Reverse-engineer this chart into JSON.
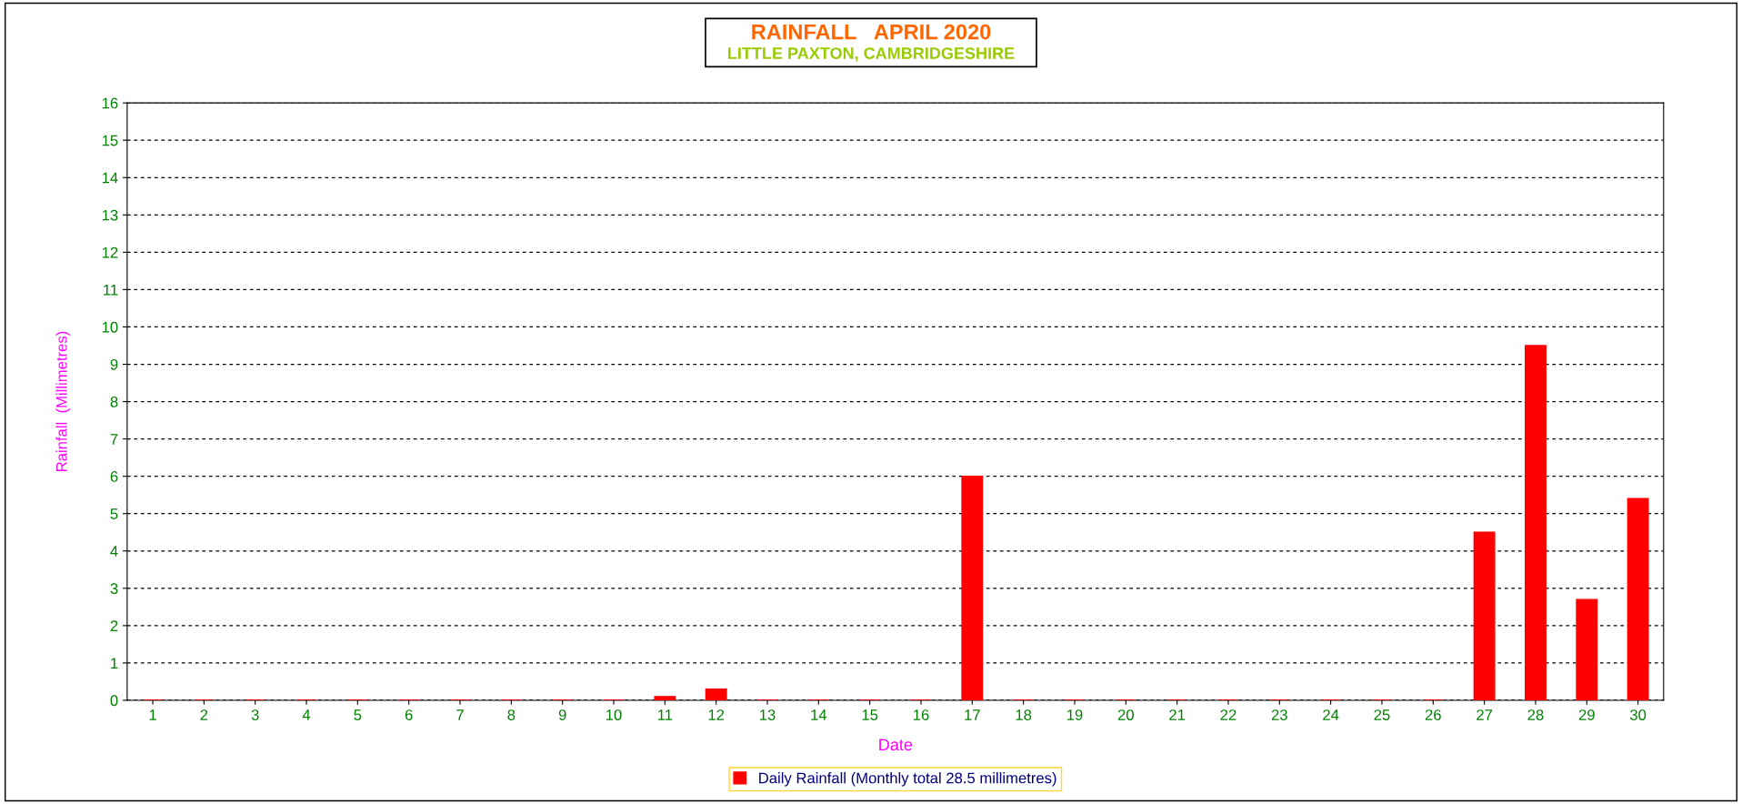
{
  "chart_data": {
    "type": "bar",
    "title": "RAINFALL   APRIL 2020",
    "subtitle": "LITTLE PAXTON, CAMBRIDGESHIRE",
    "xlabel": "Date",
    "ylabel": "Rainfall  (Millimetres)",
    "categories": [
      "1",
      "2",
      "3",
      "4",
      "5",
      "6",
      "7",
      "8",
      "9",
      "10",
      "11",
      "12",
      "13",
      "14",
      "15",
      "16",
      "17",
      "18",
      "19",
      "20",
      "21",
      "22",
      "23",
      "24",
      "25",
      "26",
      "27",
      "28",
      "29",
      "30"
    ],
    "series": [
      {
        "name": "Daily Rainfall (Monthly total 28.5 millimetres)",
        "color": "#ff0000",
        "values": [
          0,
          0,
          0,
          0,
          0,
          0,
          0,
          0,
          0,
          0,
          0.1,
          0.3,
          0,
          0,
          0,
          0,
          6.0,
          0,
          0,
          0,
          0,
          0,
          0,
          0,
          0,
          0,
          4.5,
          9.5,
          2.7,
          5.4
        ]
      }
    ],
    "ylim": [
      0,
      16
    ],
    "yticks": [
      0,
      1,
      2,
      3,
      4,
      5,
      6,
      7,
      8,
      9,
      10,
      11,
      12,
      13,
      14,
      15,
      16
    ],
    "grid": "y",
    "legend": "bottom"
  }
}
